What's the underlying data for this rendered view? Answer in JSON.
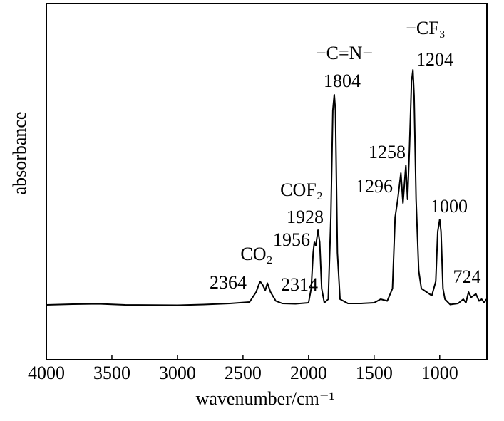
{
  "chart_data": {
    "type": "line",
    "y_label": "absorbance",
    "x_label": "wavenumber/cm⁻¹",
    "xlim": [
      4000,
      640
    ],
    "xticks": [
      4000,
      3500,
      3000,
      2500,
      2000,
      1500,
      1000
    ],
    "ylim": [
      0,
      1
    ],
    "color": "#000000",
    "x": [
      4000,
      3800,
      3600,
      3400,
      3000,
      2800,
      2600,
      2450,
      2400,
      2370,
      2350,
      2330,
      2314,
      2290,
      2250,
      2200,
      2100,
      2000,
      1980,
      1965,
      1956,
      1945,
      1928,
      1915,
      1900,
      1880,
      1850,
      1830,
      1815,
      1804,
      1795,
      1780,
      1760,
      1700,
      1600,
      1500,
      1450,
      1400,
      1360,
      1340,
      1320,
      1296,
      1280,
      1258,
      1245,
      1230,
      1215,
      1204,
      1195,
      1180,
      1160,
      1140,
      1100,
      1060,
      1030,
      1015,
      1000,
      990,
      975,
      960,
      920,
      860,
      820,
      800,
      780,
      760,
      724,
      700,
      680,
      660,
      645
    ],
    "values": [
      0.154,
      0.156,
      0.157,
      0.154,
      0.153,
      0.155,
      0.158,
      0.162,
      0.19,
      0.22,
      0.21,
      0.195,
      0.215,
      0.19,
      0.165,
      0.158,
      0.157,
      0.16,
      0.2,
      0.3,
      0.33,
      0.32,
      0.364,
      0.33,
      0.2,
      0.16,
      0.17,
      0.4,
      0.7,
      0.744,
      0.7,
      0.3,
      0.17,
      0.158,
      0.158,
      0.16,
      0.17,
      0.165,
      0.2,
      0.4,
      0.45,
      0.524,
      0.44,
      0.546,
      0.45,
      0.6,
      0.78,
      0.814,
      0.74,
      0.45,
      0.25,
      0.2,
      0.19,
      0.18,
      0.22,
      0.36,
      0.394,
      0.36,
      0.2,
      0.17,
      0.155,
      0.158,
      0.17,
      0.16,
      0.19,
      0.175,
      0.185,
      0.165,
      0.17,
      0.16,
      0.17
    ],
    "annotations": [
      "−CF₃",
      "1204",
      "−C=N−",
      "1804",
      "1258",
      "1296",
      "COF₂",
      "1928",
      "1956",
      "CO₂",
      "2364",
      "2314",
      "1000",
      "724"
    ]
  }
}
